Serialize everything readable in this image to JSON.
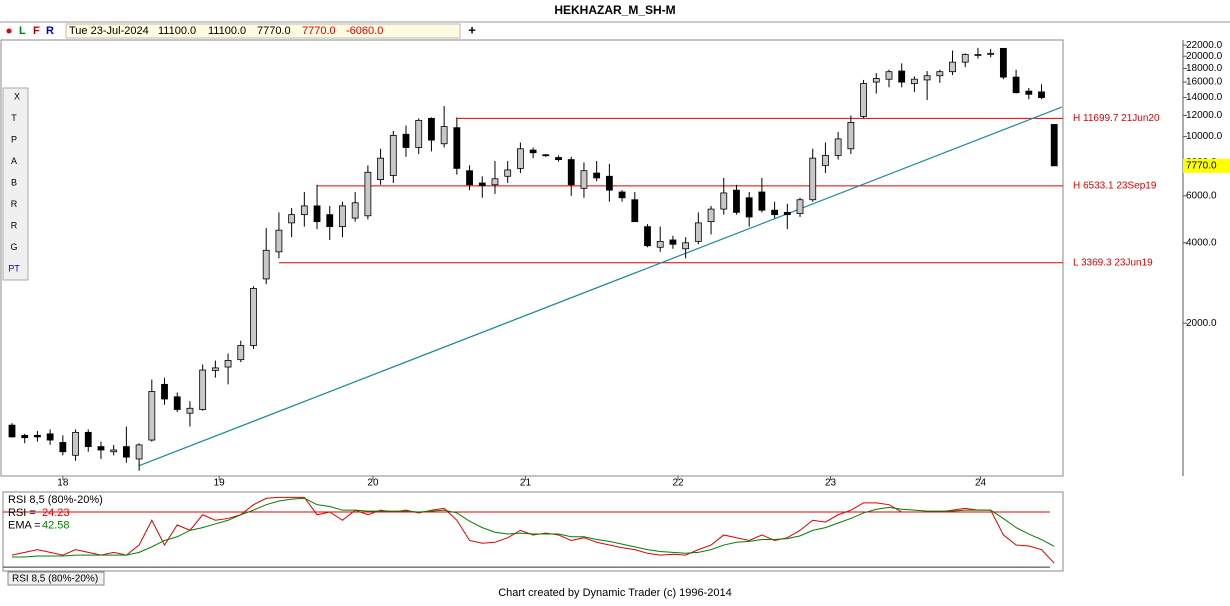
{
  "title": "HEKHAZAR_M_SH-M",
  "toolbar": {
    "letters": [
      "L",
      "F",
      "R"
    ],
    "plus": "+"
  },
  "header": {
    "date": "Tue 23-Jul-2024",
    "values": [
      "11100.0",
      "11100.0",
      "7770.0",
      "7770.0",
      "-6060.0"
    ]
  },
  "tools": [
    "X",
    "T",
    "P",
    "A",
    "B",
    "R",
    "R",
    "G",
    "PT"
  ],
  "footer": "Chart created by Dynamic Trader  (c) 1996-2014",
  "chart_data": [
    {
      "type": "candlestick",
      "log_scale": true,
      "up_color": "#c8c8c8",
      "down_color": "#000000",
      "open": [
        830,
        760,
        760,
        770,
        715,
        640,
        780,
        690,
        660,
        690,
        620,
        730,
        1180,
        1060,
        920,
        950,
        1330,
        1370,
        1460,
        1650,
        2930,
        3700,
        4750,
        5100,
        5500,
        5100,
        4600,
        4950,
        5050,
        6900,
        7150,
        10200,
        9100,
        11700,
        9400,
        10800,
        7450,
        6700,
        6600,
        7100,
        7600,
        8900,
        8550,
        8350,
        8200,
        6400,
        7300,
        7100,
        6200,
        5800,
        4600,
        3850,
        4100,
        3800,
        4050,
        4800,
        5350,
        6300,
        5900,
        6200,
        5300,
        5200,
        5150,
        5800,
        7800,
        8500,
        9000,
        11900,
        16000,
        16400,
        17600,
        15800,
        16300,
        16900,
        17500,
        19000,
        20300,
        20500,
        21400,
        16700,
        14800,
        14700,
        11100
      ],
      "high": [
        845,
        770,
        790,
        800,
        760,
        800,
        800,
        720,
        700,
        820,
        710,
        1230,
        1250,
        1100,
        1020,
        1400,
        1450,
        1540,
        1720,
        2750,
        4540,
        5200,
        5400,
        6200,
        6600,
        5500,
        5700,
        6200,
        7800,
        9000,
        10500,
        11000,
        11700,
        11800,
        13000,
        11800,
        7800,
        7100,
        8100,
        8100,
        9500,
        9100,
        8600,
        8500,
        8400,
        8000,
        8100,
        7900,
        6300,
        6200,
        4700,
        4600,
        4250,
        4200,
        5200,
        5500,
        7000,
        6600,
        6200,
        7000,
        5700,
        5600,
        5900,
        9000,
        9500,
        10400,
        12000,
        16300,
        17300,
        17800,
        18800,
        16800,
        17600,
        17800,
        21000,
        20500,
        21500,
        21300,
        21400,
        17800,
        15200,
        15700,
        11100
      ],
      "low": [
        745,
        710,
        720,
        700,
        640,
        610,
        660,
        620,
        640,
        600,
        560,
        720,
        990,
        930,
        820,
        940,
        1250,
        1180,
        1430,
        1600,
        2800,
        3500,
        4200,
        4600,
        4500,
        4100,
        4200,
        4800,
        4900,
        6600,
        6700,
        8400,
        8600,
        8800,
        9100,
        7200,
        6300,
        5900,
        6100,
        6700,
        7300,
        8300,
        8400,
        8050,
        6000,
        5900,
        6800,
        5700,
        5700,
        4800,
        3850,
        3700,
        3800,
        3500,
        3950,
        4300,
        5100,
        5100,
        4600,
        5200,
        4950,
        4500,
        5000,
        5700,
        7300,
        8200,
        8600,
        11700,
        14500,
        15300,
        15300,
        14700,
        13700,
        15900,
        17000,
        18200,
        19600,
        19800,
        16400,
        14500,
        13800,
        13800,
        7770
      ],
      "close": [
        750,
        745,
        750,
        730,
        660,
        780,
        690,
        670,
        670,
        630,
        700,
        1110,
        1040,
        950,
        960,
        1335,
        1360,
        1450,
        1650,
        2700,
        3750,
        4460,
        5100,
        5500,
        4800,
        4600,
        5500,
        5650,
        7350,
        8300,
        10100,
        9100,
        11500,
        9700,
        10900,
        7600,
        6600,
        6550,
        6950,
        7500,
        9000,
        8700,
        8500,
        8200,
        6600,
        7450,
        7000,
        6300,
        5900,
        4800,
        3900,
        4050,
        3950,
        4000,
        4750,
        5350,
        6150,
        5200,
        5000,
        5300,
        5100,
        5100,
        5800,
        8300,
        8500,
        9800,
        11300,
        15800,
        16500,
        17500,
        16000,
        16400,
        16900,
        17500,
        19000,
        20300,
        20300,
        20500,
        16700,
        14600,
        14400,
        14000,
        7770
      ],
      "last_label": {
        "value": 7770,
        "label": "7770.0"
      },
      "ylim": [
        540,
        23000
      ],
      "yticks": [
        {
          "value": 22000,
          "label": "22000.0"
        },
        {
          "value": 20000,
          "label": "20000.0"
        },
        {
          "value": 18000,
          "label": "18000.0"
        },
        {
          "value": 16000,
          "label": "16000.0"
        },
        {
          "value": 14000,
          "label": "14000.0"
        },
        {
          "value": 12000,
          "label": "12000.0"
        },
        {
          "value": 10000,
          "label": "10000.0"
        },
        {
          "value": 8000,
          "label": "8000.0"
        },
        {
          "value": 6000,
          "label": "6000.0"
        },
        {
          "value": 4000,
          "label": "4000.0"
        },
        {
          "value": 2000,
          "label": "2000.0"
        }
      ],
      "xticks": [
        {
          "value": 4,
          "label": "18"
        },
        {
          "value": 16.3,
          "label": "19"
        },
        {
          "value": 28.4,
          "label": "20"
        },
        {
          "value": 40.4,
          "label": "21"
        },
        {
          "value": 52.4,
          "label": "22"
        },
        {
          "value": 64.4,
          "label": "23"
        },
        {
          "value": 76.2,
          "label": "24"
        }
      ],
      "levels": [
        {
          "label": "H 11699.7 21Jun20",
          "value": 11699.7,
          "start": 35
        },
        {
          "label": "H 6533.1 23Sep19",
          "value": 6533.1,
          "start": 24
        },
        {
          "label": "L 3369.3 23Jun19",
          "value": 3369.3,
          "start": 21
        }
      ],
      "level_color": "#e00000",
      "trendline": {
        "x": [
          10,
          82.6
        ],
        "y": [
          585,
          12900
        ],
        "color": "#1a8a9a"
      }
    },
    {
      "type": "line",
      "title": "RSI 8,5 (80%-20%)",
      "tab": "RSI 8,5 (80%-20%)",
      "ylim": [
        18,
        98
      ],
      "levels": [
        80,
        20
      ],
      "level_colors": [
        "#e00000",
        "#333333"
      ],
      "series": [
        {
          "name": "RSI =",
          "color": "#e00000",
          "values": [
            33,
            36,
            39,
            36,
            33,
            39,
            36,
            33,
            36,
            33,
            44,
            71,
            44,
            66,
            60,
            77,
            71,
            73,
            77,
            88,
            95,
            96,
            96,
            96,
            77,
            80,
            71,
            82,
            77,
            82,
            80,
            82,
            79,
            82,
            84,
            71,
            49,
            46,
            47,
            52,
            60,
            55,
            57,
            55,
            49,
            52,
            47,
            44,
            41,
            39,
            35,
            33,
            34,
            33,
            39,
            44,
            55,
            52,
            49,
            55,
            49,
            52,
            60,
            71,
            69,
            77,
            82,
            90,
            90,
            88,
            80,
            80,
            80,
            80,
            82,
            84,
            82,
            82,
            55,
            44,
            43,
            39,
            24.23
          ]
        },
        {
          "name": "EMA =",
          "color": "#008000",
          "values": [
            31,
            31,
            32,
            32,
            32,
            33,
            33,
            33,
            33,
            33,
            36,
            42,
            49,
            53,
            60,
            63,
            67,
            71,
            77,
            82,
            88,
            92,
            94,
            95,
            88,
            86,
            82,
            82,
            81,
            81,
            81,
            81,
            80,
            81,
            82,
            79,
            70,
            63,
            58,
            56,
            57,
            56,
            56,
            56,
            53,
            53,
            50,
            48,
            45,
            42,
            39,
            37,
            36,
            35,
            36,
            39,
            44,
            47,
            48,
            50,
            50,
            51,
            54,
            60,
            63,
            68,
            73,
            79,
            83,
            85,
            83,
            82,
            81,
            81,
            81,
            82,
            82,
            82,
            73,
            63,
            56,
            50,
            42.58
          ]
        }
      ]
    }
  ]
}
